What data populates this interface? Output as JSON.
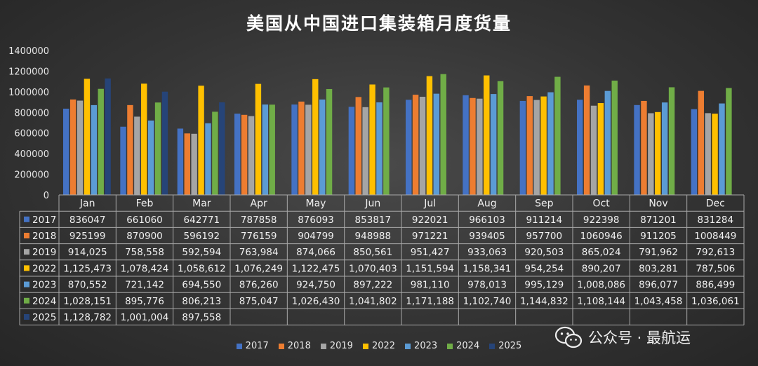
{
  "chart_data": {
    "type": "bar",
    "title": "美国从中国进口集装箱月度货量",
    "categories": [
      "Jan",
      "Feb",
      "Mar",
      "Apr",
      "May",
      "Jun",
      "Jul",
      "Aug",
      "Sep",
      "Oct",
      "Nov",
      "Dec"
    ],
    "ylim": [
      0,
      1400000
    ],
    "yticks": [
      "0",
      "200000",
      "400000",
      "600000",
      "800000",
      "1000000",
      "1200000",
      "1400000"
    ],
    "grid": false,
    "legend_position": "bottom",
    "series": [
      {
        "name": "2017",
        "color": "#4472c4",
        "values": [
          836047,
          661060,
          642771,
          787858,
          876093,
          853817,
          922021,
          966103,
          911214,
          922398,
          871201,
          831284
        ],
        "labels": [
          "836047",
          "661060",
          "642771",
          "787858",
          "876093",
          "853817",
          "922021",
          "966103",
          "911214",
          "922398",
          "871201",
          "831284"
        ]
      },
      {
        "name": "2018",
        "color": "#ed7d31",
        "values": [
          925199,
          870900,
          596192,
          776159,
          904799,
          948988,
          971221,
          939405,
          957700,
          1060946,
          911205,
          1008449
        ],
        "labels": [
          "925199",
          "870900",
          "596192",
          "776159",
          "904799",
          "948988",
          "971221",
          "939405",
          "957700",
          "1060946",
          "911205",
          "1008449"
        ]
      },
      {
        "name": "2019",
        "color": "#a5a5a5",
        "values": [
          914025,
          758558,
          592594,
          763984,
          874066,
          850561,
          951427,
          933063,
          920503,
          865024,
          791962,
          792613
        ],
        "labels": [
          "914,025",
          "758,558",
          "592,594",
          "763,984",
          "874,066",
          "850,561",
          "951,427",
          "933,063",
          "920,503",
          "865,024",
          "791,962",
          "792,613"
        ]
      },
      {
        "name": "2022",
        "color": "#ffc000",
        "values": [
          1125473,
          1078424,
          1058612,
          1076249,
          1122475,
          1070403,
          1151594,
          1158341,
          954254,
          890207,
          803281,
          787506
        ],
        "labels": [
          "1,125,473",
          "1,078,424",
          "1,058,612",
          "1,076,249",
          "1,122,475",
          "1,070,403",
          "1,151,594",
          "1,158,341",
          "954,254",
          "890,207",
          "803,281",
          "787,506"
        ]
      },
      {
        "name": "2023",
        "color": "#5b9bd5",
        "values": [
          870552,
          721142,
          694550,
          876260,
          924750,
          897222,
          981110,
          978013,
          995129,
          1008086,
          896077,
          886499
        ],
        "labels": [
          "870,552",
          "721,142",
          "694,550",
          "876,260",
          "924,750",
          "897,222",
          "981,110",
          "978,013",
          "995,129",
          "1,008,086",
          "896,077",
          "886,499"
        ]
      },
      {
        "name": "2024",
        "color": "#70ad47",
        "values": [
          1028151,
          895776,
          806213,
          875047,
          1026430,
          1041802,
          1171188,
          1102740,
          1144832,
          1108144,
          1043458,
          1036061
        ],
        "labels": [
          "1,028,151",
          "895,776",
          "806,213",
          "875,047",
          "1,026,430",
          "1,041,802",
          "1,171,188",
          "1,102,740",
          "1,144,832",
          "1,108,144",
          "1,043,458",
          "1,036,061"
        ]
      },
      {
        "name": "2025",
        "color": "#264478",
        "values": [
          1128782,
          1001004,
          897558,
          null,
          null,
          null,
          null,
          null,
          null,
          null,
          null,
          null
        ],
        "labels": [
          "1,128,782",
          "1,001,004",
          "897,558",
          "",
          "",
          "",
          "",
          "",
          "",
          "",
          "",
          ""
        ]
      }
    ]
  },
  "watermark": {
    "icon": "wechat-icon",
    "text": "公众号 · 最航运"
  }
}
